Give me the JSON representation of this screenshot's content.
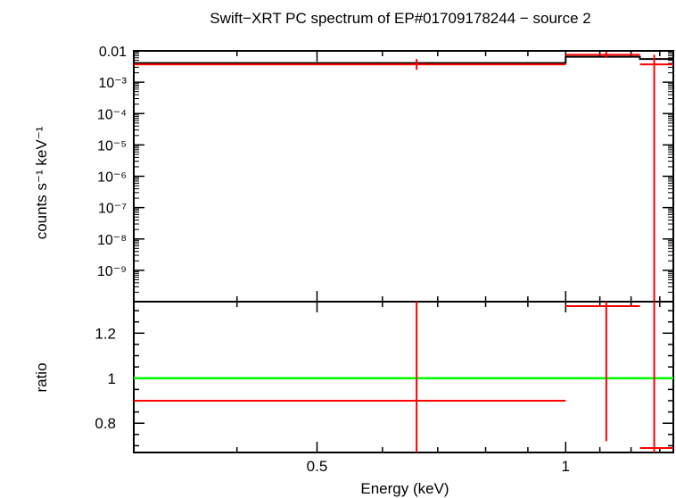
{
  "title": "Swift−XRT PC spectrum of EP#01709178244 − source 2",
  "colors": {
    "data": "#ff0000",
    "model": "#000000",
    "unity": "#00ff00",
    "axes": "#000000"
  },
  "chart_data": [
    {
      "type": "scatter",
      "panel": "spectrum",
      "ylabel": "counts s⁻¹ keV⁻¹",
      "xscale": "log",
      "yscale": "log",
      "xlim": [
        0.3,
        1.35
      ],
      "ylim": [
        1e-10,
        0.01
      ],
      "y_ticks": [
        {
          "value": 0.01,
          "label": "0.01"
        },
        {
          "value": 0.001,
          "label": "10⁻³"
        },
        {
          "value": 0.0001,
          "label": "10⁻⁴"
        },
        {
          "value": 1e-05,
          "label": "10⁻⁵"
        },
        {
          "value": 1e-06,
          "label": "10⁻⁶"
        },
        {
          "value": 1e-07,
          "label": "10⁻⁷"
        },
        {
          "value": 1e-08,
          "label": "10⁻⁸"
        },
        {
          "value": 1e-09,
          "label": "10⁻⁹"
        }
      ],
      "data_points": [
        {
          "x": 0.66,
          "xlo": 0.3,
          "xhi": 1.0,
          "y": 0.0037,
          "ylo": 0.0025,
          "yhi": 0.0055
        },
        {
          "x": 1.12,
          "xlo": 1.0,
          "xhi": 1.23,
          "y": 0.0075,
          "ylo": 0.006,
          "yhi": 0.0095
        },
        {
          "x": 1.28,
          "xlo": 1.23,
          "xhi": 1.35,
          "y": 0.0037,
          "ylo": 1e-10,
          "yhi": 0.0075
        }
      ],
      "model_steps": [
        {
          "xlo": 0.3,
          "xhi": 1.0,
          "y": 0.0041
        },
        {
          "xlo": 1.0,
          "xhi": 1.23,
          "y": 0.0065
        },
        {
          "xlo": 1.23,
          "xhi": 1.35,
          "y": 0.0055
        }
      ]
    },
    {
      "type": "scatter",
      "panel": "ratio",
      "xlabel": "Energy (keV)",
      "ylabel": "ratio",
      "xscale": "log",
      "xlim": [
        0.3,
        1.35
      ],
      "ylim": [
        0.67,
        1.34
      ],
      "x_ticks": [
        {
          "value": 0.5,
          "label": "0.5"
        },
        {
          "value": 1,
          "label": "1"
        }
      ],
      "y_ticks": [
        {
          "value": 0.8,
          "label": "0.8"
        },
        {
          "value": 1,
          "label": "1"
        },
        {
          "value": 1.2,
          "label": "1.2"
        }
      ],
      "reference_line": 1,
      "data_points": [
        {
          "x": 0.66,
          "xlo": 0.3,
          "xhi": 1.0,
          "y": 0.9,
          "ylo": 0.67,
          "yhi": 1.34
        },
        {
          "x": 1.12,
          "xlo": 1.0,
          "xhi": 1.23,
          "y": 1.32,
          "ylo": 0.72,
          "yhi": 1.34
        },
        {
          "x": 1.28,
          "xlo": 1.23,
          "xhi": 1.35,
          "y": 0.69,
          "ylo": 0.67,
          "yhi": 1.34
        }
      ]
    }
  ]
}
